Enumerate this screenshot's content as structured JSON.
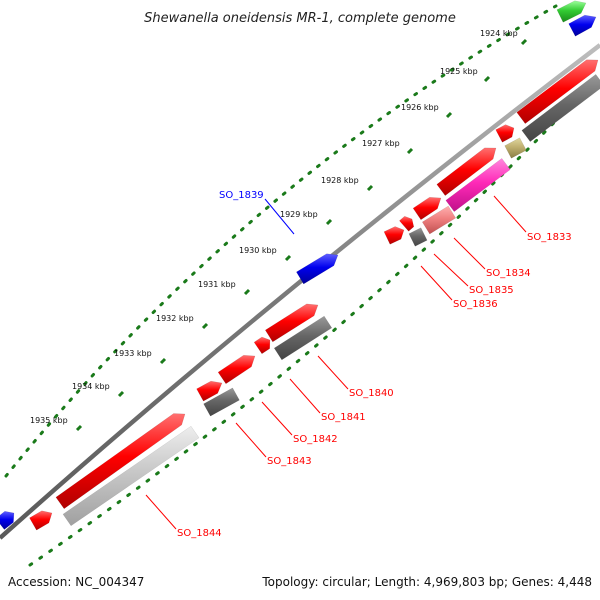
{
  "title": "Shewanella oneidensis MR-1, complete genome",
  "footer": {
    "accession": "Accession: NC_004347",
    "summary": "Topology: circular; Length: 4,969,803 bp; Genes: 4,448"
  },
  "ticks": [
    "1924 kbp",
    "1925 kbp",
    "1926 kbp",
    "1927 kbp",
    "1928 kbp",
    "1929 kbp",
    "1930 kbp",
    "1931 kbp",
    "1932 kbp",
    "1933 kbp",
    "1934 kbp",
    "1935 kbp"
  ],
  "gene_labels": {
    "so_1839": "SO_1839",
    "so_1833": "SO_1833",
    "so_1834": "SO_1834",
    "so_1835": "SO_1835",
    "so_1836": "SO_1836",
    "so_1840": "SO_1840",
    "so_1841": "SO_1841",
    "so_1842": "SO_1842",
    "so_1843": "SO_1843",
    "so_1844": "SO_1844"
  },
  "colors": {
    "backbone": "#808080",
    "cds_forward": "#ff0000",
    "cds_reverse": "#0000ff",
    "gene_label_forward": "#ff0000",
    "gene_label_reverse": "#0000ff",
    "dots": "#1a7a1a",
    "ticks": "#1a7a1a"
  }
}
